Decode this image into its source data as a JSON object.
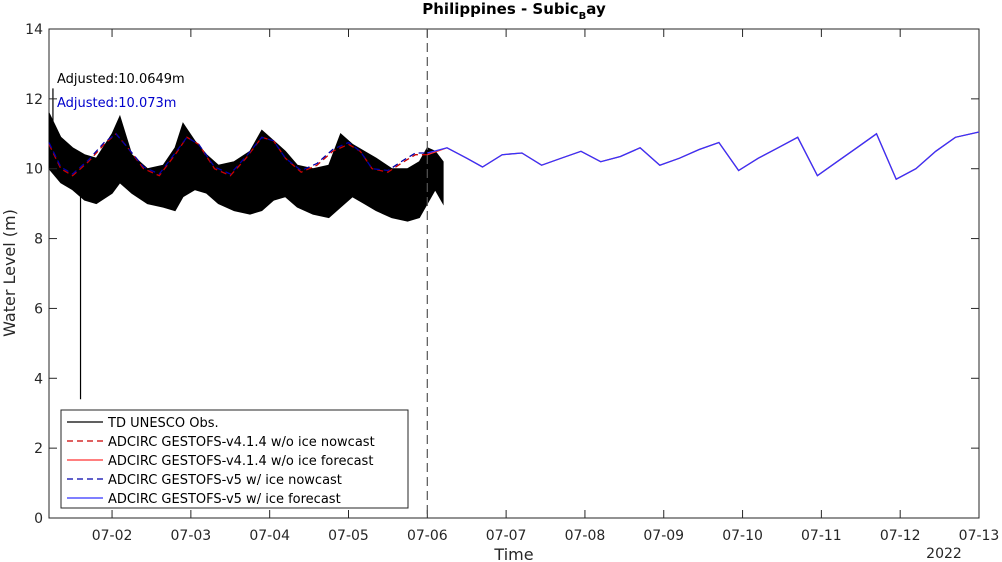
{
  "chart_data": {
    "type": "line",
    "title": "Philippines - Subic",
    "title_subscript": "B",
    "title_suffix": "ay",
    "xlabel": "Time",
    "ylabel": "Water Level (m)",
    "x_year_label": "2022",
    "xlim": [
      1.2,
      13.0
    ],
    "ylim": [
      0,
      14
    ],
    "yticks": [
      0,
      2,
      4,
      6,
      8,
      10,
      12,
      14
    ],
    "xticks": [
      {
        "value": 2,
        "label": "07-02"
      },
      {
        "value": 3,
        "label": "07-03"
      },
      {
        "value": 4,
        "label": "07-04"
      },
      {
        "value": 5,
        "label": "07-05"
      },
      {
        "value": 6,
        "label": "07-06"
      },
      {
        "value": 7,
        "label": "07-07"
      },
      {
        "value": 8,
        "label": "07-08"
      },
      {
        "value": 9,
        "label": "07-09"
      },
      {
        "value": 10,
        "label": "07-10"
      },
      {
        "value": 11,
        "label": "07-11"
      },
      {
        "value": 12,
        "label": "07-12"
      },
      {
        "value": 13,
        "label": "07-13"
      }
    ],
    "grid": false,
    "legend_position": "bottom-left",
    "nowcast_forecast_split": 6.0,
    "annotations": [
      {
        "text": "Adjusted:10.0649m",
        "color": "#000000"
      },
      {
        "text": "Adjusted:10.073m",
        "color": "#0000cc"
      }
    ],
    "series": [
      {
        "name": "TD UNESCO Obs.",
        "color": "#000000",
        "style": "solid",
        "x": [
          1.2,
          1.35,
          1.5,
          1.65,
          1.8,
          2.0,
          2.1,
          2.25,
          2.45,
          2.65,
          2.8,
          2.9,
          3.05,
          3.2,
          3.35,
          3.55,
          3.75,
          3.9,
          4.05,
          4.2,
          4.35,
          4.55,
          4.75,
          4.9,
          5.05,
          5.2,
          5.35,
          5.55,
          5.75,
          5.9,
          6.0,
          6.1,
          6.2
        ],
        "upper": [
          11.6,
          10.9,
          10.6,
          10.4,
          10.3,
          11.0,
          11.5,
          10.4,
          10.0,
          10.1,
          10.6,
          11.3,
          10.8,
          10.4,
          10.1,
          10.2,
          10.5,
          11.1,
          10.8,
          10.5,
          10.1,
          10.0,
          10.1,
          11.0,
          10.7,
          10.5,
          10.3,
          10.0,
          10.0,
          10.2,
          10.6,
          10.5,
          10.2
        ],
        "lower": [
          10.0,
          9.6,
          9.4,
          9.1,
          9.0,
          9.3,
          9.6,
          9.3,
          9.0,
          8.9,
          8.8,
          9.2,
          9.4,
          9.3,
          9.0,
          8.8,
          8.7,
          8.8,
          9.1,
          9.2,
          8.9,
          8.7,
          8.6,
          8.9,
          9.2,
          9.0,
          8.8,
          8.6,
          8.5,
          8.6,
          9.0,
          9.4,
          9.0
        ]
      },
      {
        "name": "ADCIRC GESTOFS-v4.1.4 w/o ice nowcast",
        "color": "#cc0000",
        "style": "dashed",
        "x": [
          1.2,
          1.35,
          1.5,
          1.7,
          1.9,
          2.05,
          2.2,
          2.4,
          2.6,
          2.8,
          2.95,
          3.1,
          3.3,
          3.5,
          3.7,
          3.9,
          4.05,
          4.2,
          4.4,
          4.6,
          4.8,
          5.0,
          5.15,
          5.3,
          5.5,
          5.7,
          5.85,
          6.0
        ],
        "y": [
          10.7,
          10.0,
          9.8,
          10.2,
          10.7,
          11.0,
          10.6,
          10.0,
          9.8,
          10.4,
          10.9,
          10.7,
          10.0,
          9.8,
          10.3,
          10.9,
          10.8,
          10.3,
          9.9,
          10.1,
          10.5,
          10.7,
          10.5,
          10.0,
          9.9,
          10.2,
          10.4,
          10.4
        ]
      },
      {
        "name": "ADCIRC GESTOFS-v4.1.4 w/o ice forecast",
        "color": "#ff3333",
        "style": "solid",
        "x": [
          6.0,
          6.25,
          6.5,
          6.7,
          6.95,
          7.2,
          7.45,
          7.7,
          7.95,
          8.2,
          8.45,
          8.7,
          8.95,
          9.2,
          9.45,
          9.7,
          9.95,
          10.2,
          10.45,
          10.7,
          10.95,
          11.2,
          11.45,
          11.7,
          11.95,
          12.2,
          12.45,
          12.7,
          13.0
        ],
        "y": [
          10.4,
          10.6,
          10.3,
          10.05,
          10.4,
          10.45,
          10.1,
          10.3,
          10.5,
          10.2,
          10.35,
          10.6,
          10.1,
          10.3,
          10.55,
          10.75,
          9.95,
          10.3,
          10.6,
          10.9,
          9.8,
          10.2,
          10.6,
          11.0,
          9.7,
          10.0,
          10.5,
          10.9,
          11.05
        ]
      },
      {
        "name": "ADCIRC GESTOFS-v5 w/ ice nowcast",
        "color": "#0000aa",
        "style": "dashed",
        "x": [
          1.2,
          1.35,
          1.5,
          1.7,
          1.9,
          2.05,
          2.2,
          2.4,
          2.6,
          2.8,
          2.95,
          3.1,
          3.3,
          3.5,
          3.7,
          3.9,
          4.05,
          4.2,
          4.4,
          4.6,
          4.8,
          5.0,
          5.15,
          5.3,
          5.5,
          5.7,
          5.85,
          6.0
        ],
        "y": [
          10.75,
          10.05,
          9.85,
          10.25,
          10.75,
          11.0,
          10.6,
          10.05,
          9.85,
          10.45,
          10.9,
          10.7,
          10.05,
          9.85,
          10.35,
          10.9,
          10.8,
          10.3,
          9.95,
          10.15,
          10.55,
          10.75,
          10.5,
          10.0,
          9.95,
          10.25,
          10.45,
          10.45
        ]
      },
      {
        "name": "ADCIRC GESTOFS-v5 w/ ice forecast",
        "color": "#3333ff",
        "style": "solid",
        "x": [
          6.0,
          6.25,
          6.5,
          6.7,
          6.95,
          7.2,
          7.45,
          7.7,
          7.95,
          8.2,
          8.45,
          8.7,
          8.95,
          9.2,
          9.45,
          9.7,
          9.95,
          10.2,
          10.45,
          10.7,
          10.95,
          11.2,
          11.45,
          11.7,
          11.95,
          12.2,
          12.45,
          12.7,
          13.0
        ],
        "y": [
          10.45,
          10.6,
          10.3,
          10.05,
          10.4,
          10.45,
          10.1,
          10.3,
          10.5,
          10.2,
          10.35,
          10.6,
          10.1,
          10.3,
          10.55,
          10.75,
          9.95,
          10.3,
          10.6,
          10.9,
          9.8,
          10.2,
          10.6,
          11.0,
          9.7,
          10.0,
          10.5,
          10.9,
          11.05
        ]
      }
    ]
  }
}
